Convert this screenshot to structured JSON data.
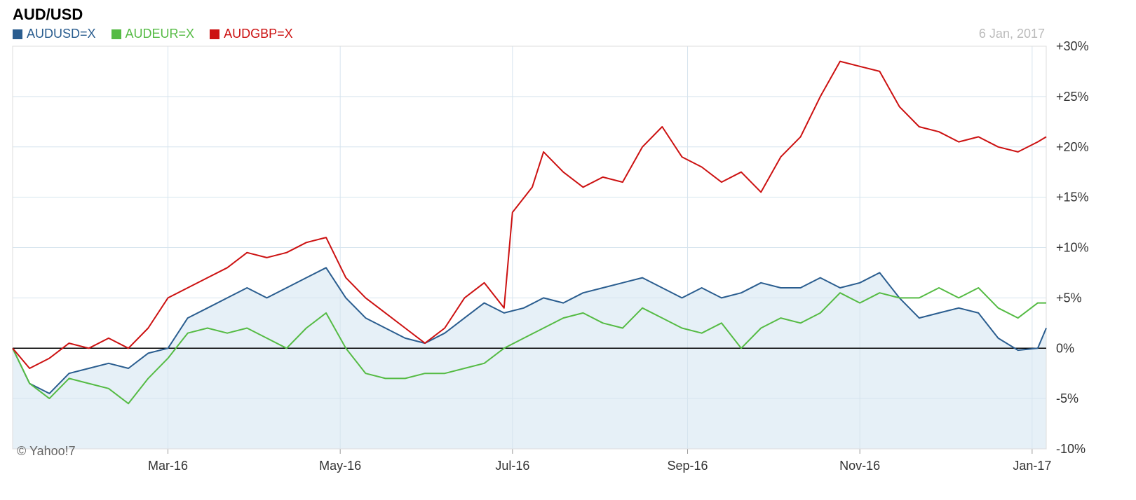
{
  "title": "AUD/USD",
  "date_label": "6 Jan, 2017",
  "credit": "© Yahoo!7",
  "colors": {
    "AUDUSD": "#2a5d8f",
    "AUDEUR": "#55bb44",
    "AUDGBP": "#cc1111",
    "area_fill": "#e6f0f7",
    "grid": "#d6e4ee",
    "zero_line": "#000000"
  },
  "legend": [
    {
      "label": "AUDUSD=X",
      "color": "#2a5d8f"
    },
    {
      "label": "AUDEUR=X",
      "color": "#55bb44"
    },
    {
      "label": "AUDGBP=X",
      "color": "#cc1111"
    }
  ],
  "chart_data": {
    "type": "line",
    "title": "AUD/USD",
    "x_range": [
      "2016-01-06",
      "2017-01-06"
    ],
    "ylim": [
      -10,
      30
    ],
    "y_ticks": [
      30,
      25,
      20,
      15,
      10,
      5,
      0,
      -5,
      -10
    ],
    "y_tick_labels": [
      "+30%",
      "+25%",
      "+20%",
      "+15%",
      "+10%",
      "+5%",
      "0%",
      "-5%",
      "-10%"
    ],
    "x_ticks": [
      {
        "label": "Mar-16",
        "date": "2016-03-01"
      },
      {
        "label": "May-16",
        "date": "2016-05-01"
      },
      {
        "label": "Jul-16",
        "date": "2016-07-01"
      },
      {
        "label": "Sep-16",
        "date": "2016-09-01"
      },
      {
        "label": "Nov-16",
        "date": "2016-11-01"
      },
      {
        "label": "Jan-17",
        "date": "2017-01-01"
      }
    ],
    "grid": true,
    "legend_position": "top-left",
    "series": [
      {
        "name": "AUDUSD=X",
        "color": "#2a5d8f",
        "filled": true,
        "points": [
          [
            "2016-01-06",
            0
          ],
          [
            "2016-01-12",
            -3.5
          ],
          [
            "2016-01-19",
            -4.5
          ],
          [
            "2016-01-26",
            -2.5
          ],
          [
            "2016-02-02",
            -2
          ],
          [
            "2016-02-09",
            -1.5
          ],
          [
            "2016-02-16",
            -2
          ],
          [
            "2016-02-23",
            -0.5
          ],
          [
            "2016-03-01",
            0
          ],
          [
            "2016-03-08",
            3
          ],
          [
            "2016-03-15",
            4
          ],
          [
            "2016-03-22",
            5
          ],
          [
            "2016-03-29",
            6
          ],
          [
            "2016-04-05",
            5
          ],
          [
            "2016-04-12",
            6
          ],
          [
            "2016-04-19",
            7
          ],
          [
            "2016-04-26",
            8
          ],
          [
            "2016-05-03",
            5
          ],
          [
            "2016-05-10",
            3
          ],
          [
            "2016-05-17",
            2
          ],
          [
            "2016-05-24",
            1
          ],
          [
            "2016-05-31",
            0.5
          ],
          [
            "2016-06-07",
            1.5
          ],
          [
            "2016-06-14",
            3
          ],
          [
            "2016-06-21",
            4.5
          ],
          [
            "2016-06-28",
            3.5
          ],
          [
            "2016-07-05",
            4
          ],
          [
            "2016-07-12",
            5
          ],
          [
            "2016-07-19",
            4.5
          ],
          [
            "2016-07-26",
            5.5
          ],
          [
            "2016-08-02",
            6
          ],
          [
            "2016-08-09",
            6.5
          ],
          [
            "2016-08-16",
            7
          ],
          [
            "2016-08-23",
            6
          ],
          [
            "2016-08-30",
            5
          ],
          [
            "2016-09-06",
            6
          ],
          [
            "2016-09-13",
            5
          ],
          [
            "2016-09-20",
            5.5
          ],
          [
            "2016-09-27",
            6.5
          ],
          [
            "2016-10-04",
            6
          ],
          [
            "2016-10-11",
            6
          ],
          [
            "2016-10-18",
            7
          ],
          [
            "2016-10-25",
            6
          ],
          [
            "2016-11-01",
            6.5
          ],
          [
            "2016-11-08",
            7.5
          ],
          [
            "2016-11-15",
            5
          ],
          [
            "2016-11-22",
            3
          ],
          [
            "2016-11-29",
            3.5
          ],
          [
            "2016-12-06",
            4
          ],
          [
            "2016-12-13",
            3.5
          ],
          [
            "2016-12-20",
            1
          ],
          [
            "2016-12-27",
            -0.2
          ],
          [
            "2017-01-03",
            0
          ],
          [
            "2017-01-06",
            2
          ]
        ]
      },
      {
        "name": "AUDEUR=X",
        "color": "#55bb44",
        "filled": false,
        "points": [
          [
            "2016-01-06",
            0
          ],
          [
            "2016-01-12",
            -3.5
          ],
          [
            "2016-01-19",
            -5
          ],
          [
            "2016-01-26",
            -3
          ],
          [
            "2016-02-02",
            -3.5
          ],
          [
            "2016-02-09",
            -4
          ],
          [
            "2016-02-16",
            -5.5
          ],
          [
            "2016-02-23",
            -3
          ],
          [
            "2016-03-01",
            -1
          ],
          [
            "2016-03-08",
            1.5
          ],
          [
            "2016-03-15",
            2
          ],
          [
            "2016-03-22",
            1.5
          ],
          [
            "2016-03-29",
            2
          ],
          [
            "2016-04-05",
            1
          ],
          [
            "2016-04-12",
            0
          ],
          [
            "2016-04-19",
            2
          ],
          [
            "2016-04-26",
            3.5
          ],
          [
            "2016-05-03",
            0
          ],
          [
            "2016-05-10",
            -2.5
          ],
          [
            "2016-05-17",
            -3
          ],
          [
            "2016-05-24",
            -3
          ],
          [
            "2016-05-31",
            -2.5
          ],
          [
            "2016-06-07",
            -2.5
          ],
          [
            "2016-06-14",
            -2
          ],
          [
            "2016-06-21",
            -1.5
          ],
          [
            "2016-06-28",
            0
          ],
          [
            "2016-07-05",
            1
          ],
          [
            "2016-07-12",
            2
          ],
          [
            "2016-07-19",
            3
          ],
          [
            "2016-07-26",
            3.5
          ],
          [
            "2016-08-02",
            2.5
          ],
          [
            "2016-08-09",
            2
          ],
          [
            "2016-08-16",
            4
          ],
          [
            "2016-08-23",
            3
          ],
          [
            "2016-08-30",
            2
          ],
          [
            "2016-09-06",
            1.5
          ],
          [
            "2016-09-13",
            2.5
          ],
          [
            "2016-09-20",
            0
          ],
          [
            "2016-09-27",
            2
          ],
          [
            "2016-10-04",
            3
          ],
          [
            "2016-10-11",
            2.5
          ],
          [
            "2016-10-18",
            3.5
          ],
          [
            "2016-10-25",
            5.5
          ],
          [
            "2016-11-01",
            4.5
          ],
          [
            "2016-11-08",
            5.5
          ],
          [
            "2016-11-15",
            5
          ],
          [
            "2016-11-22",
            5
          ],
          [
            "2016-11-29",
            6
          ],
          [
            "2016-12-06",
            5
          ],
          [
            "2016-12-13",
            6
          ],
          [
            "2016-12-20",
            4
          ],
          [
            "2016-12-27",
            3
          ],
          [
            "2017-01-03",
            4.5
          ],
          [
            "2017-01-06",
            4.5
          ]
        ]
      },
      {
        "name": "AUDGBP=X",
        "color": "#cc1111",
        "filled": false,
        "points": [
          [
            "2016-01-06",
            0
          ],
          [
            "2016-01-12",
            -2
          ],
          [
            "2016-01-19",
            -1
          ],
          [
            "2016-01-26",
            0.5
          ],
          [
            "2016-02-02",
            0
          ],
          [
            "2016-02-09",
            1
          ],
          [
            "2016-02-16",
            0
          ],
          [
            "2016-02-23",
            2
          ],
          [
            "2016-03-01",
            5
          ],
          [
            "2016-03-08",
            6
          ],
          [
            "2016-03-15",
            7
          ],
          [
            "2016-03-22",
            8
          ],
          [
            "2016-03-29",
            9.5
          ],
          [
            "2016-04-05",
            9
          ],
          [
            "2016-04-12",
            9.5
          ],
          [
            "2016-04-19",
            10.5
          ],
          [
            "2016-04-26",
            11
          ],
          [
            "2016-05-03",
            7
          ],
          [
            "2016-05-10",
            5
          ],
          [
            "2016-05-17",
            3.5
          ],
          [
            "2016-05-24",
            2
          ],
          [
            "2016-05-31",
            0.5
          ],
          [
            "2016-06-07",
            2
          ],
          [
            "2016-06-14",
            5
          ],
          [
            "2016-06-21",
            6.5
          ],
          [
            "2016-06-28",
            4
          ],
          [
            "2016-07-01",
            13.5
          ],
          [
            "2016-07-08",
            16
          ],
          [
            "2016-07-12",
            19.5
          ],
          [
            "2016-07-19",
            17.5
          ],
          [
            "2016-07-26",
            16
          ],
          [
            "2016-08-02",
            17
          ],
          [
            "2016-08-09",
            16.5
          ],
          [
            "2016-08-16",
            20
          ],
          [
            "2016-08-23",
            22
          ],
          [
            "2016-08-30",
            19
          ],
          [
            "2016-09-06",
            18
          ],
          [
            "2016-09-13",
            16.5
          ],
          [
            "2016-09-20",
            17.5
          ],
          [
            "2016-09-27",
            15.5
          ],
          [
            "2016-10-04",
            19
          ],
          [
            "2016-10-11",
            21
          ],
          [
            "2016-10-18",
            25
          ],
          [
            "2016-10-25",
            28.5
          ],
          [
            "2016-11-01",
            28
          ],
          [
            "2016-11-08",
            27.5
          ],
          [
            "2016-11-15",
            24
          ],
          [
            "2016-11-22",
            22
          ],
          [
            "2016-11-29",
            21.5
          ],
          [
            "2016-12-06",
            20.5
          ],
          [
            "2016-12-13",
            21
          ],
          [
            "2016-12-20",
            20
          ],
          [
            "2016-12-27",
            19.5
          ],
          [
            "2017-01-03",
            20.5
          ],
          [
            "2017-01-06",
            21
          ]
        ]
      }
    ]
  }
}
